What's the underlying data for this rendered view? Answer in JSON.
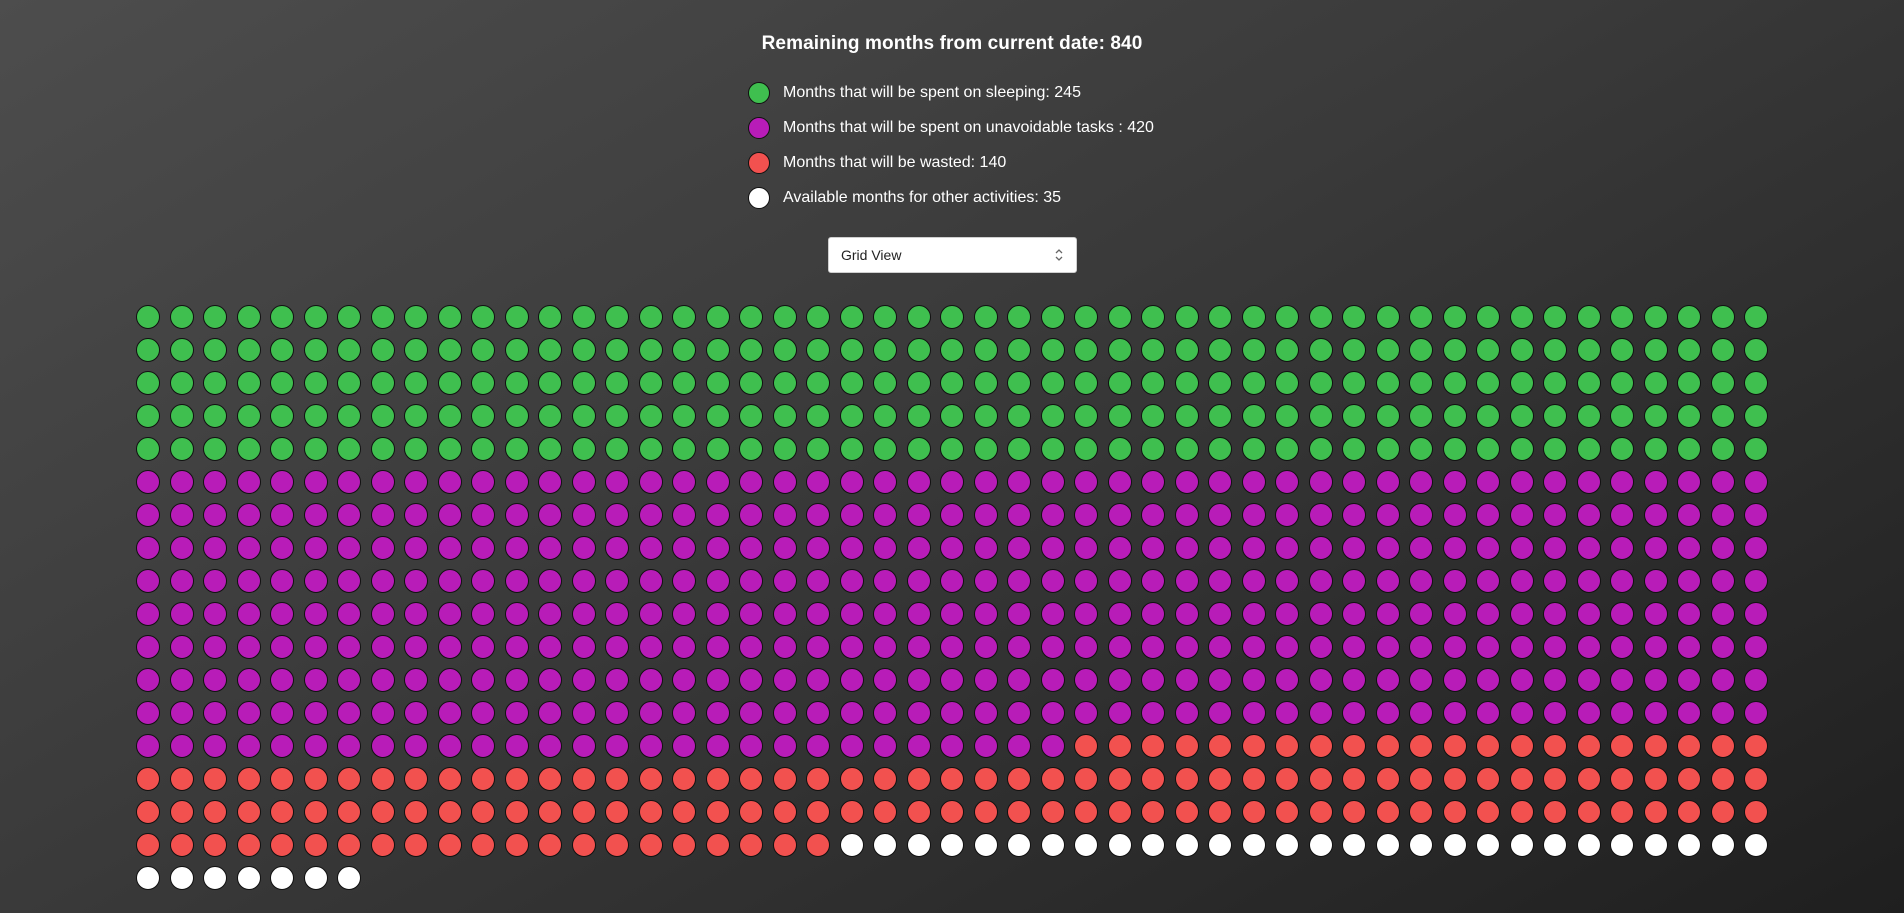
{
  "header": {
    "title": "Remaining months from current date: 840"
  },
  "legend": {
    "items": [
      {
        "label": "Months that will be spent on sleeping: 245",
        "color": "#3fbf4f",
        "icon": "circle-dot"
      },
      {
        "label": "Months that will be spent on unavoidable tasks : 420",
        "color": "#b81cb8",
        "icon": "circle-dot"
      },
      {
        "label": "Months that will be wasted: 140",
        "color": "#f2514f",
        "icon": "circle-dot"
      },
      {
        "label": "Available months for other activities: 35",
        "color": "#ffffff",
        "icon": "circle-dot"
      }
    ]
  },
  "view_select": {
    "selected": "Grid View",
    "icon": "updown-chevron-icon"
  },
  "grid": {
    "columns": 49,
    "total": 840,
    "segments": [
      {
        "category": "sleeping",
        "count": 245,
        "color": "#3fbf4f"
      },
      {
        "category": "unavoidable",
        "count": 420,
        "color": "#b81cb8"
      },
      {
        "category": "wasted",
        "count": 140,
        "color": "#f2514f"
      },
      {
        "category": "available",
        "count": 35,
        "color": "#ffffff"
      }
    ]
  }
}
